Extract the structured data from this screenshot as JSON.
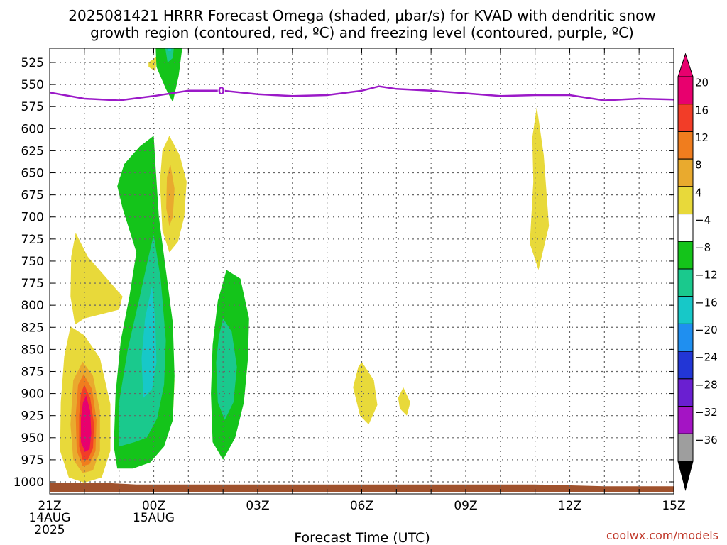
{
  "chart_data": {
    "type": "heatmap",
    "title_lines": [
      "2025081421 HRRR Forecast Omega (shaded, μbar/s) for KVAD with dendritic snow",
      "growth region (contoured, red, ºC) and freezing level (contoured, purple, ºC)"
    ],
    "xlabel": "Forecast Time (UTC)",
    "credit": "coolwx.com/models",
    "x_hours": [
      0,
      1,
      2,
      3,
      4,
      5,
      6,
      7,
      8,
      9,
      10,
      11,
      12,
      13,
      14,
      15,
      16,
      17,
      18
    ],
    "x_ticks": [
      {
        "hour": 0,
        "lines": [
          "21Z",
          "14AUG",
          "2025"
        ]
      },
      {
        "hour": 3,
        "lines": [
          "00Z",
          "15AUG"
        ]
      },
      {
        "hour": 6,
        "lines": [
          "03Z"
        ]
      },
      {
        "hour": 9,
        "lines": [
          "06Z"
        ]
      },
      {
        "hour": 12,
        "lines": [
          "09Z"
        ]
      },
      {
        "hour": 15,
        "lines": [
          "12Z"
        ]
      },
      {
        "hour": 18,
        "lines": [
          "15Z"
        ]
      }
    ],
    "y_ticks": [
      525,
      550,
      575,
      600,
      625,
      650,
      675,
      700,
      725,
      750,
      775,
      800,
      825,
      850,
      875,
      900,
      925,
      950,
      975,
      1000
    ],
    "ylim": [
      510,
      1010
    ],
    "grid": true,
    "colorbar": {
      "labels": [
        "20",
        "16",
        "12",
        "8",
        "4",
        "−4",
        "−8",
        "−12",
        "−16",
        "−20",
        "−24",
        "−28",
        "−32",
        "−36"
      ],
      "colors": [
        "#e8006e",
        "#f23d28",
        "#f07d1e",
        "#e9aa2e",
        "#e8d93a",
        "#ffffff",
        "#14c41a",
        "#1ac98d",
        "#17c8c8",
        "#1f8ff0",
        "#2236d6",
        "#6a1fd1",
        "#a414c4",
        "#9e9e9e"
      ]
    },
    "freezing_level": {
      "label": "0",
      "label_hour": 4.95,
      "color": "#9b19c8",
      "hours": [
        0,
        1,
        2,
        3,
        4,
        5,
        6,
        7,
        8,
        9,
        9.5,
        10,
        11,
        12,
        13,
        14,
        15,
        16,
        17,
        18
      ],
      "pressures": [
        559,
        566,
        568,
        563,
        557,
        557,
        561,
        563,
        562,
        557,
        552,
        555,
        557,
        560,
        563,
        562,
        562,
        568,
        566,
        567
      ]
    },
    "omega_regions": [
      {
        "value": 4,
        "color": "#e8d93a",
        "points": [
          [
            0.6,
            824
          ],
          [
            1.0,
            834
          ],
          [
            1.45,
            860
          ],
          [
            1.75,
            912
          ],
          [
            1.75,
            965
          ],
          [
            1.5,
            995
          ],
          [
            1.0,
            1001
          ],
          [
            0.55,
            995
          ],
          [
            0.3,
            965
          ],
          [
            0.32,
            910
          ],
          [
            0.42,
            858
          ]
        ]
      },
      {
        "value": 8,
        "color": "#e9aa2e",
        "points": [
          [
            0.95,
            864
          ],
          [
            1.25,
            880
          ],
          [
            1.45,
            920
          ],
          [
            1.45,
            965
          ],
          [
            1.25,
            987
          ],
          [
            0.95,
            990
          ],
          [
            0.68,
            975
          ],
          [
            0.6,
            935
          ],
          [
            0.68,
            885
          ]
        ]
      },
      {
        "value": 12,
        "color": "#f07d1e",
        "points": [
          [
            0.98,
            878
          ],
          [
            1.22,
            895
          ],
          [
            1.35,
            930
          ],
          [
            1.32,
            965
          ],
          [
            1.15,
            980
          ],
          [
            0.95,
            982
          ],
          [
            0.78,
            965
          ],
          [
            0.75,
            925
          ],
          [
            0.82,
            890
          ]
        ]
      },
      {
        "value": 16,
        "color": "#f23d28",
        "points": [
          [
            1.0,
            890
          ],
          [
            1.17,
            905
          ],
          [
            1.28,
            935
          ],
          [
            1.25,
            962
          ],
          [
            1.1,
            975
          ],
          [
            0.95,
            975
          ],
          [
            0.85,
            960
          ],
          [
            0.85,
            925
          ],
          [
            0.9,
            900
          ]
        ]
      },
      {
        "value": 20,
        "color": "#e8006e",
        "points": [
          [
            1.05,
            902
          ],
          [
            1.17,
            920
          ],
          [
            1.2,
            945
          ],
          [
            1.15,
            963
          ],
          [
            1.02,
            966
          ],
          [
            0.9,
            955
          ],
          [
            0.9,
            928
          ],
          [
            0.96,
            910
          ]
        ]
      },
      {
        "value": 4,
        "color": "#e8d93a",
        "points": [
          [
            0.75,
            718
          ],
          [
            1.1,
            745
          ],
          [
            1.7,
            772
          ],
          [
            2.1,
            790
          ],
          [
            2.0,
            805
          ],
          [
            1.5,
            810
          ],
          [
            1.0,
            815
          ],
          [
            0.73,
            822
          ],
          [
            0.6,
            790
          ],
          [
            0.62,
            745
          ]
        ]
      },
      {
        "value": 4,
        "color": "#e8d93a",
        "points": [
          [
            2.85,
            525
          ],
          [
            3.1,
            518
          ],
          [
            3.05,
            535
          ],
          [
            2.85,
            530
          ]
        ]
      },
      {
        "value": 4,
        "color": "#e8d93a",
        "points": [
          [
            3.45,
            608
          ],
          [
            3.75,
            630
          ],
          [
            3.95,
            660
          ],
          [
            3.88,
            700
          ],
          [
            3.7,
            728
          ],
          [
            3.45,
            740
          ],
          [
            3.25,
            715
          ],
          [
            3.18,
            660
          ],
          [
            3.25,
            625
          ]
        ]
      },
      {
        "value": 8,
        "color": "#e9aa2e",
        "points": [
          [
            3.48,
            640
          ],
          [
            3.6,
            668
          ],
          [
            3.55,
            700
          ],
          [
            3.45,
            710
          ],
          [
            3.36,
            690
          ],
          [
            3.38,
            655
          ]
        ]
      },
      {
        "value": 4,
        "color": "#e8d93a",
        "points": [
          [
            3.48,
            845
          ],
          [
            3.6,
            885
          ],
          [
            3.55,
            930
          ],
          [
            3.45,
            938
          ],
          [
            3.35,
            905
          ],
          [
            3.4,
            860
          ]
        ]
      },
      {
        "value": 4,
        "color": "#e8d93a",
        "points": [
          [
            9.0,
            864
          ],
          [
            9.35,
            885
          ],
          [
            9.45,
            913
          ],
          [
            9.2,
            935
          ],
          [
            8.95,
            925
          ],
          [
            8.75,
            893
          ],
          [
            8.9,
            870
          ]
        ]
      },
      {
        "value": 4,
        "color": "#e8d93a",
        "points": [
          [
            10.2,
            893
          ],
          [
            10.4,
            910
          ],
          [
            10.3,
            925
          ],
          [
            10.1,
            917
          ],
          [
            10.05,
            905
          ]
        ]
      },
      {
        "value": 4,
        "color": "#e8d93a",
        "points": [
          [
            14.05,
            575
          ],
          [
            14.25,
            630
          ],
          [
            14.4,
            710
          ],
          [
            14.25,
            735
          ],
          [
            14.1,
            760
          ],
          [
            13.85,
            730
          ],
          [
            13.95,
            660
          ],
          [
            13.92,
            610
          ]
        ]
      },
      {
        "value": -4,
        "color": "#14c41a",
        "points": [
          [
            3.0,
            608
          ],
          [
            3.05,
            640
          ],
          [
            3.15,
            700
          ],
          [
            3.35,
            760
          ],
          [
            3.55,
            820
          ],
          [
            3.6,
            880
          ],
          [
            3.55,
            930
          ],
          [
            3.3,
            960
          ],
          [
            2.9,
            978
          ],
          [
            2.4,
            985
          ],
          [
            1.95,
            985
          ],
          [
            1.85,
            960
          ],
          [
            1.9,
            900
          ],
          [
            2.05,
            840
          ],
          [
            2.3,
            790
          ],
          [
            2.5,
            740
          ],
          [
            2.1,
            690
          ],
          [
            1.95,
            665
          ],
          [
            2.15,
            640
          ],
          [
            2.6,
            620
          ]
        ]
      },
      {
        "value": -8,
        "color": "#1ac98d",
        "points": [
          [
            3.0,
            720
          ],
          [
            3.2,
            770
          ],
          [
            3.35,
            840
          ],
          [
            3.3,
            890
          ],
          [
            3.1,
            928
          ],
          [
            2.8,
            950
          ],
          [
            2.45,
            955
          ],
          [
            2.0,
            960
          ],
          [
            2.0,
            910
          ],
          [
            2.25,
            850
          ],
          [
            2.6,
            790
          ],
          [
            2.85,
            745
          ]
        ]
      },
      {
        "value": -12,
        "color": "#17c8c8",
        "points": [
          [
            2.95,
            778
          ],
          [
            3.05,
            820
          ],
          [
            3.08,
            865
          ],
          [
            2.95,
            895
          ],
          [
            2.7,
            905
          ],
          [
            2.65,
            860
          ],
          [
            2.75,
            815
          ]
        ]
      },
      {
        "value": -4,
        "color": "#14c41a",
        "points": [
          [
            3.05,
            500
          ],
          [
            3.85,
            500
          ],
          [
            3.72,
            540
          ],
          [
            3.55,
            570
          ],
          [
            3.35,
            555
          ],
          [
            3.08,
            530
          ]
        ]
      },
      {
        "value": -8,
        "color": "#1ac98d",
        "points": [
          [
            3.3,
            500
          ],
          [
            3.6,
            500
          ],
          [
            3.55,
            520
          ],
          [
            3.4,
            525
          ]
        ]
      },
      {
        "value": -12,
        "color": "#17c8c8",
        "points": [
          [
            3.38,
            500
          ],
          [
            3.53,
            500
          ],
          [
            3.5,
            512
          ],
          [
            3.42,
            512
          ]
        ]
      },
      {
        "value": -4,
        "color": "#14c41a",
        "points": [
          [
            5.1,
            760
          ],
          [
            5.5,
            770
          ],
          [
            5.75,
            815
          ],
          [
            5.72,
            860
          ],
          [
            5.6,
            910
          ],
          [
            5.35,
            950
          ],
          [
            5.0,
            975
          ],
          [
            4.7,
            955
          ],
          [
            4.65,
            900
          ],
          [
            4.7,
            845
          ],
          [
            4.85,
            795
          ]
        ]
      },
      {
        "value": -8,
        "color": "#1ac98d",
        "points": [
          [
            5.0,
            815
          ],
          [
            5.25,
            830
          ],
          [
            5.4,
            870
          ],
          [
            5.3,
            910
          ],
          [
            5.05,
            930
          ],
          [
            4.85,
            910
          ],
          [
            4.8,
            865
          ],
          [
            4.88,
            835
          ]
        ]
      },
      {
        "value": 0,
        "color": "#a0522d",
        "points": [
          [
            0,
            1001
          ],
          [
            1.5,
            1001
          ],
          [
            2.5,
            1003
          ],
          [
            14,
            1003
          ],
          [
            16,
            1005
          ],
          [
            18,
            1005
          ],
          [
            18,
            1012
          ],
          [
            0,
            1012
          ]
        ]
      }
    ]
  }
}
